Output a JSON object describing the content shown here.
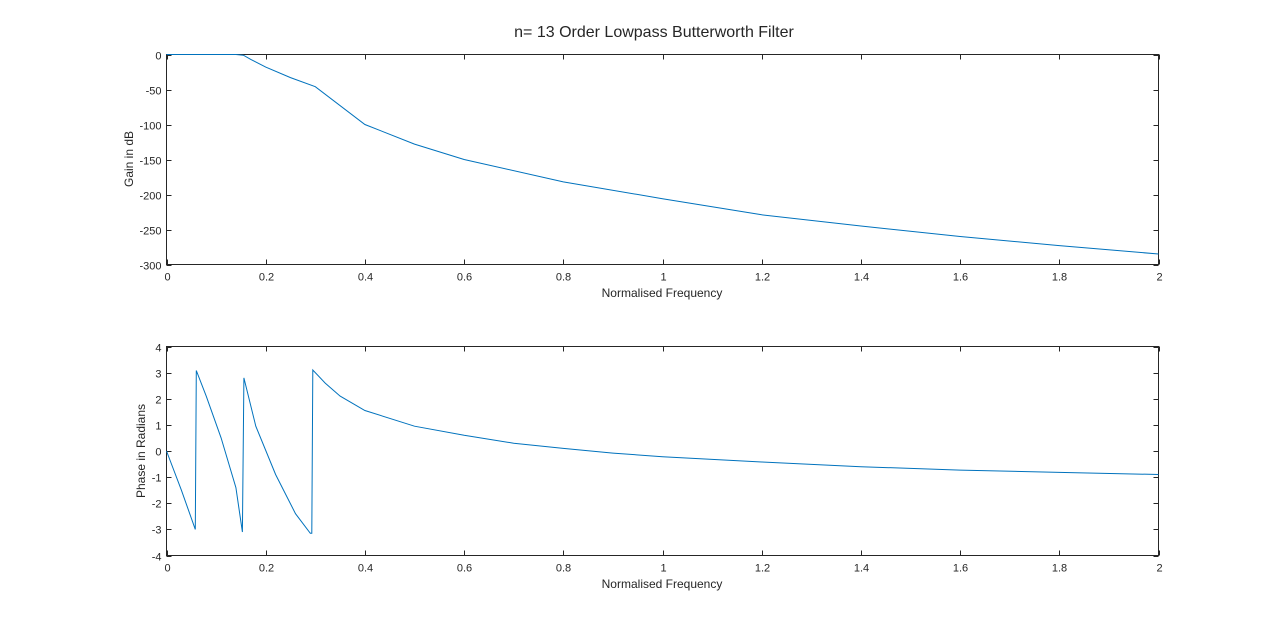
{
  "figure": {
    "title": "n= 13 Order Lowpass Butterworth Filter"
  },
  "chart_data": [
    {
      "type": "line",
      "title": "n= 13 Order Lowpass Butterworth Filter",
      "xlabel": "Normalised Frequency",
      "ylabel": "Gain in dB",
      "xlim": [
        0,
        2
      ],
      "ylim": [
        -300,
        0
      ],
      "xticks": [
        0,
        0.2,
        0.4,
        0.6,
        0.8,
        1,
        1.2,
        1.4,
        1.6,
        1.8,
        2
      ],
      "xtick_labels": [
        "0",
        "0.2",
        "0.4",
        "0.6",
        "0.8",
        "1",
        "1.2",
        "1.4",
        "1.6",
        "1.8",
        "2"
      ],
      "yticks": [
        -300,
        -250,
        -200,
        -150,
        -100,
        -50,
        0
      ],
      "ytick_labels": [
        "-300",
        "-250",
        "-200",
        "-150",
        "-100",
        "-50",
        "0"
      ],
      "grid": false,
      "color": "#0072bd",
      "series": [
        {
          "x": [
            0,
            0.05,
            0.1,
            0.14,
            0.155,
            0.17,
            0.2,
            0.25,
            0.3,
            0.4,
            0.5,
            0.6,
            0.8,
            1.0,
            1.2,
            1.4,
            1.6,
            1.8,
            2.0
          ],
          "values": [
            0,
            0,
            0,
            0,
            -1,
            -7,
            -18,
            -33,
            -46,
            -100,
            -128,
            -150,
            -182,
            -206,
            -229,
            -245,
            -260,
            -273,
            -285
          ]
        }
      ]
    },
    {
      "type": "line",
      "title": "",
      "xlabel": "Normalised Frequency",
      "ylabel": "Phase in Radians",
      "xlim": [
        0,
        2
      ],
      "ylim": [
        -4,
        4
      ],
      "xticks": [
        0,
        0.2,
        0.4,
        0.6,
        0.8,
        1,
        1.2,
        1.4,
        1.6,
        1.8,
        2
      ],
      "xtick_labels": [
        "0",
        "0.2",
        "0.4",
        "0.6",
        "0.8",
        "1",
        "1.2",
        "1.4",
        "1.6",
        "1.8",
        "2"
      ],
      "yticks": [
        -4,
        -3,
        -2,
        -1,
        0,
        1,
        2,
        3,
        4
      ],
      "ytick_labels": [
        "-4",
        "-3",
        "-2",
        "-1",
        "0",
        "1",
        "2",
        "3",
        "4"
      ],
      "grid": false,
      "color": "#0072bd",
      "series": [
        {
          "x": [
            0,
            0.03,
            0.058,
            0.06,
            0.08,
            0.11,
            0.14,
            0.153,
            0.156,
            0.18,
            0.22,
            0.26,
            0.29,
            0.293,
            0.295,
            0.32,
            0.35,
            0.4,
            0.5,
            0.6,
            0.7,
            0.8,
            0.9,
            1.0,
            1.2,
            1.4,
            1.6,
            1.8,
            2.0
          ],
          "values": [
            0,
            -1.5,
            -3.0,
            3.08,
            2.1,
            0.5,
            -1.4,
            -3.1,
            2.8,
            0.95,
            -0.9,
            -2.4,
            -3.15,
            -3.15,
            3.1,
            2.6,
            2.1,
            1.55,
            0.95,
            0.6,
            0.3,
            0.1,
            -0.08,
            -0.22,
            -0.42,
            -0.6,
            -0.73,
            -0.82,
            -0.9
          ]
        }
      ]
    }
  ]
}
